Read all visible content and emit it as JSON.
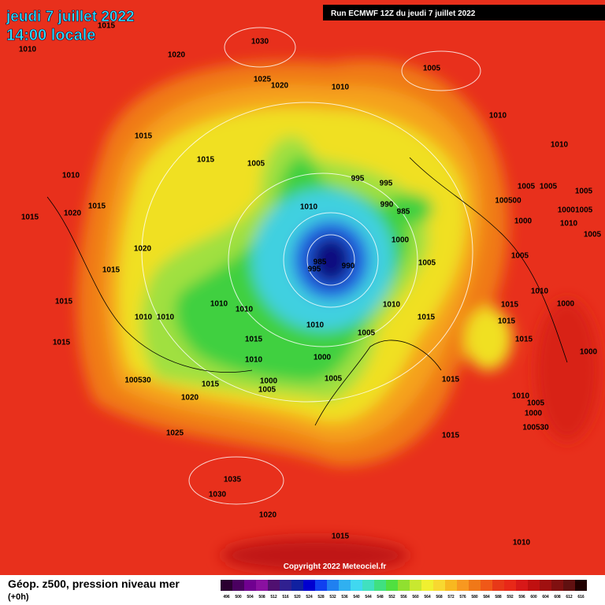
{
  "header": {
    "title": "jeudi 7 juillet 2022",
    "subtitle": "14:00 locale",
    "run": "Run ECMWF 12Z du jeudi 7 juillet 2022"
  },
  "copyright": "Copyright 2022 Meteociel.fr",
  "footer": {
    "title": "Géop. z500, pression niveau mer",
    "step": "(+0h)"
  },
  "isobar_labels": [
    "1015",
    "1010",
    "1030",
    "1020",
    "1025",
    "1020",
    "1010",
    "1005",
    "1010",
    "1010",
    "1015",
    "1015",
    "1005",
    "995",
    "995",
    "990",
    "985",
    "1010",
    "1000",
    "1005",
    "1010",
    "1015",
    "1020",
    "1015",
    "1020",
    "1015",
    "1015",
    "1010",
    "1010",
    "1010",
    "1010",
    "995",
    "985",
    "990",
    "1010",
    "1015",
    "1010",
    "1005",
    "1015",
    "1015",
    "1010",
    "1000",
    "1000",
    "1005",
    "1005",
    "1015",
    "100530",
    "1015",
    "1020",
    "1025",
    "1015",
    "1035",
    "1030",
    "1020",
    "1015",
    "1010",
    "1005",
    "1005",
    "1005",
    "100500",
    "1000",
    "10001005",
    "1010",
    "1005",
    "1005",
    "1010",
    "1000",
    "1015",
    "1015",
    "1015",
    "1000",
    "1010",
    "1005",
    "1000",
    "100530"
  ],
  "legend": {
    "labels": [
      496,
      500,
      504,
      508,
      512,
      516,
      520,
      524,
      528,
      532,
      536,
      540,
      544,
      548,
      552,
      556,
      560,
      564,
      568,
      572,
      576,
      580,
      584,
      588,
      592,
      596,
      600,
      604,
      608,
      612,
      616
    ],
    "colors": [
      "#2a0030",
      "#4a0060",
      "#700090",
      "#8a10a0",
      "#501070",
      "#302090",
      "#1020a0",
      "#0000d0",
      "#1040f0",
      "#2080f0",
      "#30b0f0",
      "#40d8f0",
      "#40e0c0",
      "#40e080",
      "#50e040",
      "#90e030",
      "#c8e830",
      "#f0f030",
      "#f8d830",
      "#f8b820",
      "#f89820",
      "#f07818",
      "#f05818",
      "#e83818",
      "#e82818",
      "#d81818",
      "#c01010",
      "#a01010",
      "#801010",
      "#601010",
      "#200000"
    ]
  }
}
